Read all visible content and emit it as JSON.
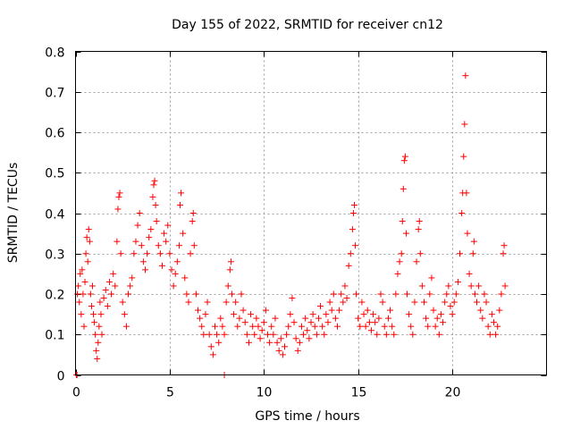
{
  "chart_data": {
    "type": "scatter",
    "title": "Day 155 of 2022, SRMTID for receiver cn12",
    "xlabel": "GPS time / hours",
    "ylabel": "SRMTID / TECUs",
    "xlim": [
      0,
      25
    ],
    "ylim": [
      0,
      0.8
    ],
    "xticks": [
      0,
      5,
      10,
      15,
      20
    ],
    "yticks": [
      0,
      0.1,
      0.2,
      0.3,
      0.4,
      0.5,
      0.6,
      0.7,
      0.8
    ],
    "xtick_labels": [
      "0",
      "5",
      "10",
      "15",
      "20"
    ],
    "ytick_labels": [
      "0",
      "0.1",
      "0.2",
      "0.3",
      "0.4",
      "0.5",
      "0.6",
      "0.7",
      "0.8"
    ],
    "grid": true,
    "marker": "+",
    "color": "#ff0000",
    "series": [
      {
        "name": "SRMTID",
        "points": [
          [
            0.05,
            0.0
          ],
          [
            0.08,
            0.0
          ],
          [
            7.9,
            0.0
          ],
          [
            0.1,
            0.2
          ],
          [
            0.15,
            0.22
          ],
          [
            0.2,
            0.18
          ],
          [
            0.25,
            0.25
          ],
          [
            0.3,
            0.15
          ],
          [
            0.35,
            0.26
          ],
          [
            0.4,
            0.2
          ],
          [
            0.45,
            0.12
          ],
          [
            0.5,
            0.23
          ],
          [
            0.55,
            0.3
          ],
          [
            0.6,
            0.34
          ],
          [
            0.65,
            0.28
          ],
          [
            0.7,
            0.36
          ],
          [
            0.75,
            0.33
          ],
          [
            0.8,
            0.2
          ],
          [
            0.85,
            0.17
          ],
          [
            0.9,
            0.22
          ],
          [
            0.95,
            0.15
          ],
          [
            1.0,
            0.13
          ],
          [
            1.05,
            0.1
          ],
          [
            1.1,
            0.06
          ],
          [
            1.15,
            0.04
          ],
          [
            1.2,
            0.08
          ],
          [
            1.25,
            0.12
          ],
          [
            1.3,
            0.18
          ],
          [
            1.35,
            0.15
          ],
          [
            1.4,
            0.1
          ],
          [
            1.5,
            0.19
          ],
          [
            1.6,
            0.21
          ],
          [
            1.7,
            0.17
          ],
          [
            1.8,
            0.23
          ],
          [
            1.9,
            0.2
          ],
          [
            2.0,
            0.25
          ],
          [
            2.1,
            0.22
          ],
          [
            2.2,
            0.33
          ],
          [
            2.25,
            0.41
          ],
          [
            2.3,
            0.44
          ],
          [
            2.35,
            0.45
          ],
          [
            2.4,
            0.3
          ],
          [
            2.5,
            0.18
          ],
          [
            2.6,
            0.15
          ],
          [
            2.7,
            0.12
          ],
          [
            2.8,
            0.2
          ],
          [
            2.9,
            0.22
          ],
          [
            3.0,
            0.24
          ],
          [
            3.1,
            0.3
          ],
          [
            3.2,
            0.33
          ],
          [
            3.3,
            0.37
          ],
          [
            3.4,
            0.4
          ],
          [
            3.5,
            0.32
          ],
          [
            3.6,
            0.28
          ],
          [
            3.7,
            0.26
          ],
          [
            3.8,
            0.3
          ],
          [
            3.9,
            0.34
          ],
          [
            4.0,
            0.36
          ],
          [
            4.1,
            0.44
          ],
          [
            4.15,
            0.47
          ],
          [
            4.2,
            0.48
          ],
          [
            4.25,
            0.42
          ],
          [
            4.3,
            0.38
          ],
          [
            4.4,
            0.32
          ],
          [
            4.5,
            0.3
          ],
          [
            4.6,
            0.27
          ],
          [
            4.7,
            0.35
          ],
          [
            4.8,
            0.33
          ],
          [
            4.9,
            0.37
          ],
          [
            5.0,
            0.3
          ],
          [
            5.1,
            0.26
          ],
          [
            5.2,
            0.22
          ],
          [
            5.3,
            0.25
          ],
          [
            5.4,
            0.28
          ],
          [
            5.5,
            0.32
          ],
          [
            5.55,
            0.42
          ],
          [
            5.6,
            0.45
          ],
          [
            5.7,
            0.35
          ],
          [
            5.8,
            0.24
          ],
          [
            5.9,
            0.2
          ],
          [
            6.0,
            0.18
          ],
          [
            6.1,
            0.3
          ],
          [
            6.2,
            0.38
          ],
          [
            6.25,
            0.4
          ],
          [
            6.3,
            0.32
          ],
          [
            6.4,
            0.2
          ],
          [
            6.5,
            0.16
          ],
          [
            6.6,
            0.14
          ],
          [
            6.7,
            0.12
          ],
          [
            6.8,
            0.1
          ],
          [
            6.9,
            0.15
          ],
          [
            7.0,
            0.18
          ],
          [
            7.1,
            0.1
          ],
          [
            7.2,
            0.07
          ],
          [
            7.3,
            0.05
          ],
          [
            7.4,
            0.12
          ],
          [
            7.5,
            0.1
          ],
          [
            7.6,
            0.08
          ],
          [
            7.7,
            0.14
          ],
          [
            7.8,
            0.12
          ],
          [
            7.9,
            0.1
          ],
          [
            8.0,
            0.18
          ],
          [
            8.1,
            0.22
          ],
          [
            8.2,
            0.26
          ],
          [
            8.25,
            0.28
          ],
          [
            8.3,
            0.2
          ],
          [
            8.4,
            0.15
          ],
          [
            8.5,
            0.18
          ],
          [
            8.6,
            0.12
          ],
          [
            8.7,
            0.14
          ],
          [
            8.8,
            0.2
          ],
          [
            8.9,
            0.16
          ],
          [
            9.0,
            0.13
          ],
          [
            9.1,
            0.1
          ],
          [
            9.2,
            0.08
          ],
          [
            9.3,
            0.15
          ],
          [
            9.4,
            0.12
          ],
          [
            9.5,
            0.1
          ],
          [
            9.6,
            0.14
          ],
          [
            9.7,
            0.12
          ],
          [
            9.8,
            0.09
          ],
          [
            9.9,
            0.11
          ],
          [
            10.0,
            0.13
          ],
          [
            10.1,
            0.16
          ],
          [
            10.2,
            0.1
          ],
          [
            10.3,
            0.08
          ],
          [
            10.4,
            0.12
          ],
          [
            10.5,
            0.1
          ],
          [
            10.6,
            0.14
          ],
          [
            10.7,
            0.08
          ],
          [
            10.8,
            0.06
          ],
          [
            10.9,
            0.09
          ],
          [
            11.0,
            0.05
          ],
          [
            11.1,
            0.07
          ],
          [
            11.2,
            0.1
          ],
          [
            11.3,
            0.12
          ],
          [
            11.4,
            0.15
          ],
          [
            11.5,
            0.19
          ],
          [
            11.6,
            0.13
          ],
          [
            11.7,
            0.09
          ],
          [
            11.8,
            0.06
          ],
          [
            11.9,
            0.08
          ],
          [
            12.0,
            0.12
          ],
          [
            12.1,
            0.1
          ],
          [
            12.2,
            0.14
          ],
          [
            12.3,
            0.11
          ],
          [
            12.4,
            0.09
          ],
          [
            12.5,
            0.13
          ],
          [
            12.6,
            0.15
          ],
          [
            12.7,
            0.12
          ],
          [
            12.8,
            0.1
          ],
          [
            12.9,
            0.14
          ],
          [
            13.0,
            0.17
          ],
          [
            13.1,
            0.12
          ],
          [
            13.2,
            0.1
          ],
          [
            13.3,
            0.15
          ],
          [
            13.4,
            0.13
          ],
          [
            13.5,
            0.18
          ],
          [
            13.6,
            0.16
          ],
          [
            13.7,
            0.2
          ],
          [
            13.8,
            0.14
          ],
          [
            13.9,
            0.12
          ],
          [
            14.0,
            0.16
          ],
          [
            14.1,
            0.2
          ],
          [
            14.2,
            0.18
          ],
          [
            14.3,
            0.22
          ],
          [
            14.4,
            0.19
          ],
          [
            14.5,
            0.27
          ],
          [
            14.6,
            0.3
          ],
          [
            14.7,
            0.36
          ],
          [
            14.75,
            0.4
          ],
          [
            14.8,
            0.42
          ],
          [
            14.85,
            0.32
          ],
          [
            14.9,
            0.2
          ],
          [
            15.0,
            0.14
          ],
          [
            15.1,
            0.12
          ],
          [
            15.2,
            0.18
          ],
          [
            15.3,
            0.15
          ],
          [
            15.4,
            0.12
          ],
          [
            15.5,
            0.16
          ],
          [
            15.6,
            0.13
          ],
          [
            15.7,
            0.11
          ],
          [
            15.8,
            0.15
          ],
          [
            15.9,
            0.13
          ],
          [
            16.0,
            0.1
          ],
          [
            16.1,
            0.14
          ],
          [
            16.2,
            0.2
          ],
          [
            16.3,
            0.18
          ],
          [
            16.4,
            0.12
          ],
          [
            16.5,
            0.1
          ],
          [
            16.6,
            0.14
          ],
          [
            16.7,
            0.16
          ],
          [
            16.8,
            0.12
          ],
          [
            16.9,
            0.1
          ],
          [
            17.0,
            0.2
          ],
          [
            17.1,
            0.25
          ],
          [
            17.2,
            0.28
          ],
          [
            17.3,
            0.3
          ],
          [
            17.35,
            0.38
          ],
          [
            17.4,
            0.46
          ],
          [
            17.45,
            0.53
          ],
          [
            17.5,
            0.54
          ],
          [
            17.55,
            0.35
          ],
          [
            17.6,
            0.2
          ],
          [
            17.7,
            0.15
          ],
          [
            17.8,
            0.12
          ],
          [
            17.9,
            0.1
          ],
          [
            18.0,
            0.18
          ],
          [
            18.1,
            0.28
          ],
          [
            18.2,
            0.36
          ],
          [
            18.25,
            0.38
          ],
          [
            18.3,
            0.3
          ],
          [
            18.4,
            0.22
          ],
          [
            18.5,
            0.18
          ],
          [
            18.6,
            0.14
          ],
          [
            18.7,
            0.12
          ],
          [
            18.8,
            0.2
          ],
          [
            18.9,
            0.24
          ],
          [
            19.0,
            0.16
          ],
          [
            19.1,
            0.12
          ],
          [
            19.2,
            0.14
          ],
          [
            19.3,
            0.1
          ],
          [
            19.4,
            0.15
          ],
          [
            19.5,
            0.13
          ],
          [
            19.6,
            0.18
          ],
          [
            19.7,
            0.2
          ],
          [
            19.8,
            0.22
          ],
          [
            19.9,
            0.17
          ],
          [
            20.0,
            0.15
          ],
          [
            20.1,
            0.18
          ],
          [
            20.2,
            0.2
          ],
          [
            20.3,
            0.23
          ],
          [
            20.4,
            0.3
          ],
          [
            20.5,
            0.4
          ],
          [
            20.55,
            0.45
          ],
          [
            20.6,
            0.54
          ],
          [
            20.65,
            0.62
          ],
          [
            20.7,
            0.74
          ],
          [
            20.75,
            0.45
          ],
          [
            20.8,
            0.35
          ],
          [
            20.9,
            0.25
          ],
          [
            21.0,
            0.22
          ],
          [
            21.1,
            0.3
          ],
          [
            21.15,
            0.33
          ],
          [
            21.2,
            0.2
          ],
          [
            21.3,
            0.18
          ],
          [
            21.4,
            0.22
          ],
          [
            21.5,
            0.16
          ],
          [
            21.6,
            0.14
          ],
          [
            21.7,
            0.2
          ],
          [
            21.8,
            0.18
          ],
          [
            21.9,
            0.12
          ],
          [
            22.0,
            0.1
          ],
          [
            22.1,
            0.15
          ],
          [
            22.2,
            0.13
          ],
          [
            22.3,
            0.1
          ],
          [
            22.4,
            0.12
          ],
          [
            22.5,
            0.16
          ],
          [
            22.6,
            0.2
          ],
          [
            22.7,
            0.3
          ],
          [
            22.75,
            0.32
          ],
          [
            22.8,
            0.22
          ]
        ]
      }
    ]
  }
}
